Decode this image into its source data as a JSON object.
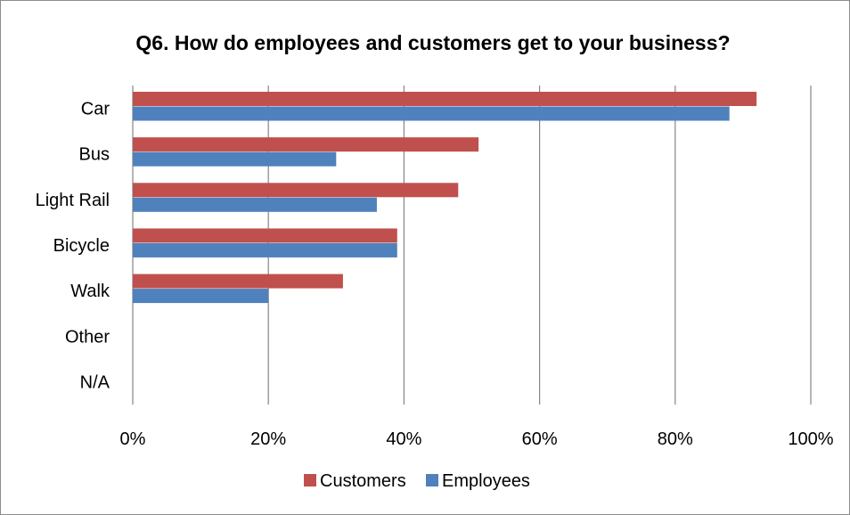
{
  "chart_data": {
    "type": "bar",
    "orientation": "horizontal",
    "title": "Q6. How do employees and customers get to your business?",
    "categories": [
      "Car",
      "Bus",
      "Light Rail",
      "Bicycle",
      "Walk",
      "Other",
      "N/A"
    ],
    "series": [
      {
        "name": "Customers",
        "color": "#c0504d",
        "values": [
          92,
          51,
          48,
          39,
          31,
          0,
          0
        ]
      },
      {
        "name": "Employees",
        "color": "#4f81bd",
        "values": [
          88,
          30,
          36,
          39,
          20,
          0,
          0
        ]
      }
    ],
    "xlim": [
      0,
      100
    ],
    "xticks": [
      "0%",
      "20%",
      "40%",
      "60%",
      "80%",
      "100%"
    ],
    "xlabel": "",
    "ylabel": "",
    "grid": "vertical",
    "legend": "bottom"
  }
}
